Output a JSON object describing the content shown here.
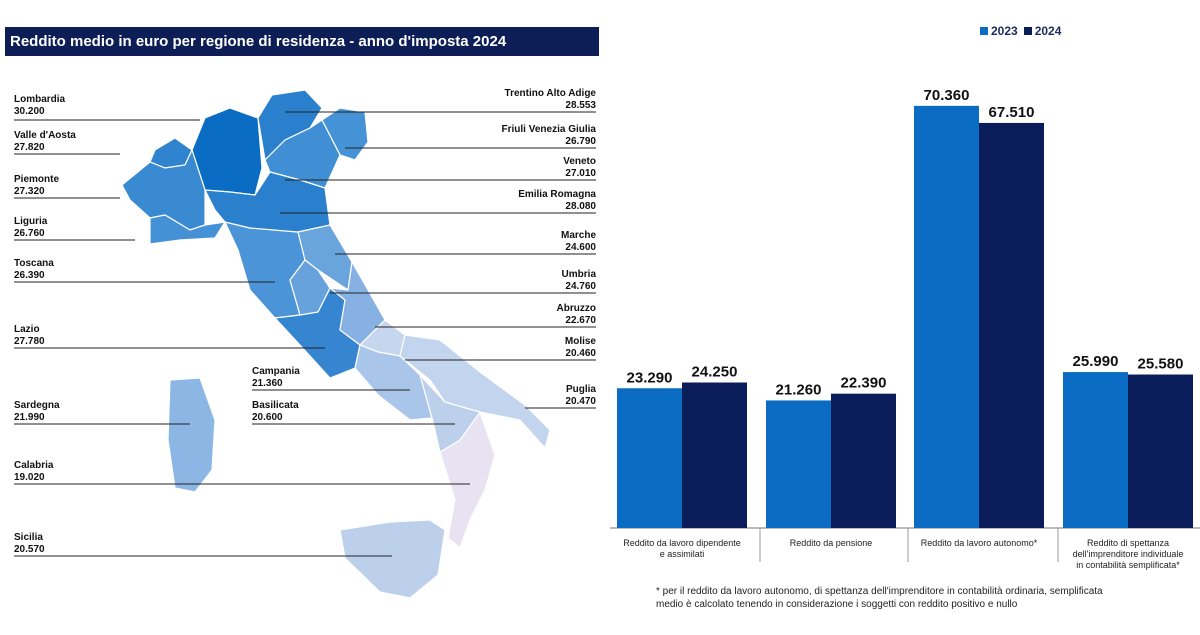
{
  "map": {
    "title": "Reddito medio in euro per regione di residenza - anno d'imposta 2024",
    "regions": [
      {
        "name": "Lombardia",
        "value": "30.200",
        "color": "#0a6cc2"
      },
      {
        "name": "Valle d'Aosta",
        "value": "27.820",
        "color": "#2f83cf"
      },
      {
        "name": "Piemonte",
        "value": "27.320",
        "color": "#3a8ad2"
      },
      {
        "name": "Liguria",
        "value": "26.760",
        "color": "#4591d6"
      },
      {
        "name": "Toscana",
        "value": "26.390",
        "color": "#4a94d7"
      },
      {
        "name": "Lazio",
        "value": "27.780",
        "color": "#3585d0"
      },
      {
        "name": "Sardegna",
        "value": "21.990",
        "color": "#8cb6e4"
      },
      {
        "name": "Calabria",
        "value": "19.020",
        "color": "#e8e3f2"
      },
      {
        "name": "Sicilia",
        "value": "20.570",
        "color": "#bcd0ec"
      },
      {
        "name": "Trentino Alto Adige",
        "value": "28.553",
        "color": "#2a80cd"
      },
      {
        "name": "Friuli Venezia Giulia",
        "value": "26.790",
        "color": "#4592d6"
      },
      {
        "name": "Veneto",
        "value": "27.010",
        "color": "#408fd5"
      },
      {
        "name": "Emilia Romagna",
        "value": "28.080",
        "color": "#2a80cd"
      },
      {
        "name": "Marche",
        "value": "24.600",
        "color": "#6aa4dd"
      },
      {
        "name": "Umbria",
        "value": "24.760",
        "color": "#68a2dd"
      },
      {
        "name": "Abruzzo",
        "value": "22.670",
        "color": "#86b1e2"
      },
      {
        "name": "Molise",
        "value": "20.460",
        "color": "#c6d6ee"
      },
      {
        "name": "Campania",
        "value": "21.360",
        "color": "#a9c5ea"
      },
      {
        "name": "Basilicata",
        "value": "20.600",
        "color": "#bcd0ec"
      },
      {
        "name": "Puglia",
        "value": "20.470",
        "color": "#c3d4ee"
      }
    ]
  },
  "chart_data": {
    "type": "bar",
    "categories": [
      [
        "Reddito da lavoro dipendente",
        "e assimilati"
      ],
      [
        "Reddito da pensione"
      ],
      [
        "Reddito da lavoro autonomo*"
      ],
      [
        "Reddito di spettanza",
        "dell'imprenditore individuale",
        "in contabilità semplificata*"
      ]
    ],
    "series": [
      {
        "name": "2023",
        "color": "#0a6cc2",
        "values": [
          23290,
          21260,
          70360,
          25990
        ],
        "labels": [
          "23.290",
          "21.260",
          "70.360",
          "25.990"
        ]
      },
      {
        "name": "2024",
        "color": "#0b1c5a",
        "values": [
          24250,
          22390,
          67510,
          25580
        ],
        "labels": [
          "24.250",
          "22.390",
          "67.510",
          "25.580"
        ]
      }
    ],
    "ylim": [
      0,
      80000
    ],
    "legend": "top-right",
    "grid": false,
    "footnote": [
      "* per il reddito da lavoro autonomo, di spettanza dell'imprenditore in contabilità ordinaria, semplificata",
      "medio è calcolato tenendo in considerazione i soggetti con reddito positivo e nullo"
    ]
  }
}
